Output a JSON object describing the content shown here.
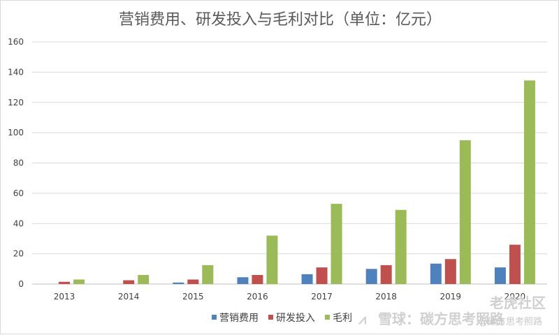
{
  "chart_data": {
    "type": "bar",
    "title": "营销费用、研发投入与毛利对比（单位：亿元）",
    "categories": [
      "2013",
      "2014",
      "2015",
      "2016",
      "2017",
      "2018",
      "2019",
      "2020"
    ],
    "series": [
      {
        "name": "营销费用",
        "color": "#4f81bd",
        "values": [
          0,
          0,
          1,
          4.5,
          6.5,
          10,
          13.5,
          11
        ]
      },
      {
        "name": "研发投入",
        "color": "#c0504d",
        "values": [
          1.5,
          2.5,
          3,
          6,
          11,
          12.5,
          16.5,
          26
        ]
      },
      {
        "name": "毛利",
        "color": "#9bbb59",
        "values": [
          3,
          6,
          12.5,
          32,
          53,
          49,
          95,
          134.5
        ]
      }
    ],
    "ylim": [
      0,
      160
    ],
    "yticks": [
      0,
      20,
      40,
      60,
      80,
      100,
      120,
      140,
      160
    ],
    "grid": true,
    "legend": "bottom"
  },
  "watermark": {
    "left_glyph": "⩘",
    "xueqiu": "雪球：碳方思考照路",
    "laohu": "老虎社区",
    "handle": "@碳方思考照路"
  }
}
